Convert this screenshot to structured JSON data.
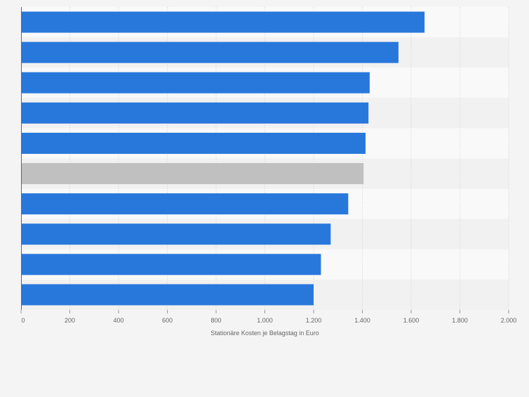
{
  "chart_data": {
    "type": "bar",
    "orientation": "horizontal",
    "categories": [
      "",
      "",
      "",
      "",
      "",
      "",
      "",
      "",
      "",
      ""
    ],
    "values": [
      1655,
      1548,
      1430,
      1425,
      1413,
      1405,
      1342,
      1270,
      1230,
      1200
    ],
    "highlight_index": 5,
    "xlabel": "Stationäre Kosten je Belagstag in Euro",
    "ylabel": "",
    "xlim": [
      0,
      2000
    ],
    "xticks": [
      0,
      200,
      400,
      600,
      800,
      1000,
      1200,
      1400,
      1600,
      1800,
      2000
    ],
    "xtick_labels": [
      "0",
      "200",
      "400",
      "600",
      "800",
      "1.000",
      "1.200",
      "1.400",
      "1.600",
      "1.800",
      "2.000"
    ],
    "grid": true,
    "legend": "none",
    "colors": {
      "bar": "#2878dc",
      "highlight": "#c0c0c0",
      "band_light": "#f9f9f9",
      "band_dark": "#f1f1f1",
      "grid": "#d2d2d2",
      "axis": "#666666",
      "label": "#666666"
    }
  }
}
